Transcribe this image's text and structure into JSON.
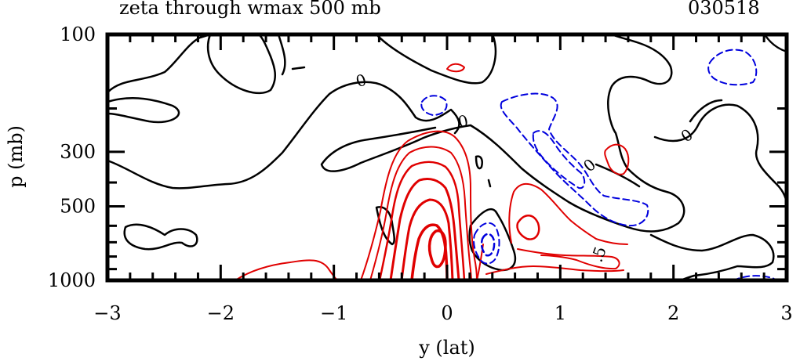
{
  "header": {
    "title": "zeta through wmax 500 mb",
    "date": "030518"
  },
  "chart_data": {
    "type": "contour",
    "title": "zeta through wmax 500 mb",
    "xlabel": "y (lat)",
    "ylabel": "p (mb)",
    "xlim": [
      -3,
      3
    ],
    "ylim": [
      1000,
      100
    ],
    "x_ticks": [
      "-3",
      "-2",
      "-1",
      "0",
      "1",
      "2",
      "3"
    ],
    "y_ticks": [
      "100",
      "300",
      "500",
      "1000"
    ],
    "grid": false,
    "colors": {
      "zero": "#000000",
      "positive": "#e00000",
      "negative": "#0000dd"
    },
    "contour_labels": [
      "0",
      "0",
      "0",
      "0",
      ".5"
    ]
  }
}
